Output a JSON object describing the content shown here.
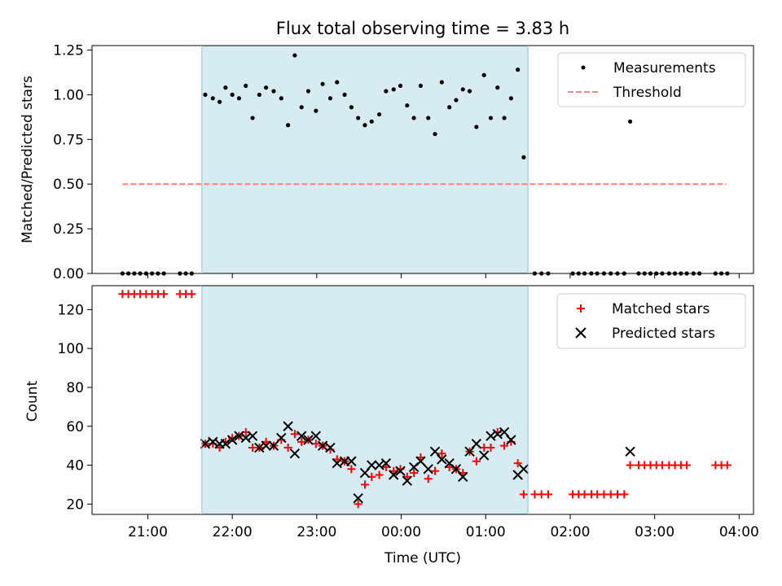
{
  "chart_data": {
    "title": "Flux total observing time = 3.83 h",
    "xlabel": "Time (UTC)",
    "x_tick_labels": [
      "21:00",
      "22:00",
      "23:00",
      "00:00",
      "01:00",
      "02:00",
      "03:00",
      "04:00"
    ],
    "x_tick_hours": [
      21,
      22,
      23,
      24,
      25,
      26,
      27,
      28
    ],
    "x_range_hours": [
      20.34,
      28.17
    ],
    "highlight_span_hours": [
      21.64,
      25.5
    ],
    "highlight_color": "#add8e6",
    "panels": [
      {
        "type": "scatter",
        "ylabel": "Matched/Predicted stars",
        "ylim": [
          0,
          1.275
        ],
        "y_ticks": [
          0.0,
          0.25,
          0.5,
          0.75,
          1.0,
          1.25
        ],
        "y_tick_labels": [
          "0.00",
          "0.25",
          "0.50",
          "0.75",
          "1.00",
          "1.25"
        ],
        "legend": [
          "Measurements",
          "Threshold"
        ],
        "legend_position": "top-right",
        "threshold": {
          "name": "Threshold",
          "value": 0.5,
          "x_start": 20.7,
          "x_end": 27.85,
          "color": "#ff7f7f"
        },
        "measurements": {
          "name": "Measurements",
          "color": "#000000",
          "x": [
            20.7,
            20.77,
            20.84,
            20.91,
            20.98,
            21.05,
            21.12,
            21.19,
            21.38,
            21.45,
            21.52,
            21.68,
            21.77,
            21.85,
            21.92,
            22.0,
            22.08,
            22.16,
            22.24,
            22.32,
            22.4,
            22.49,
            22.58,
            22.66,
            22.74,
            22.82,
            22.9,
            22.99,
            23.07,
            23.16,
            23.24,
            23.33,
            23.41,
            23.49,
            23.57,
            23.65,
            23.74,
            23.82,
            23.91,
            23.99,
            24.07,
            24.15,
            24.23,
            24.32,
            24.4,
            24.48,
            24.57,
            24.65,
            24.73,
            24.81,
            24.89,
            24.98,
            25.06,
            25.14,
            25.22,
            25.3,
            25.38,
            25.45,
            25.58,
            25.66,
            25.74,
            26.03,
            26.1,
            26.17,
            26.25,
            26.32,
            26.4,
            26.48,
            26.56,
            26.64,
            26.71,
            26.81,
            26.88,
            26.95,
            27.02,
            27.09,
            27.17,
            27.24,
            27.31,
            27.38,
            27.46,
            27.53,
            27.72,
            27.79,
            27.86
          ],
          "y": [
            0,
            0,
            0,
            0,
            0,
            0,
            0,
            0,
            0,
            0,
            0,
            1.0,
            0.98,
            0.96,
            1.04,
            1.0,
            0.98,
            1.05,
            0.87,
            1.0,
            1.04,
            1.02,
            0.98,
            0.83,
            1.22,
            0.93,
            1.02,
            0.91,
            1.06,
            0.98,
            1.07,
            1.0,
            0.93,
            0.87,
            0.83,
            0.85,
            0.89,
            1.02,
            1.03,
            1.05,
            0.94,
            0.87,
            1.05,
            0.87,
            0.78,
            1.07,
            0.93,
            0.97,
            1.03,
            1.02,
            0.82,
            1.11,
            0.87,
            1.04,
            0.87,
            0.98,
            1.14,
            0.65,
            0,
            0,
            0,
            0,
            0,
            0,
            0,
            0,
            0,
            0,
            0,
            0,
            0.85,
            0,
            0,
            0,
            0,
            0,
            0,
            0,
            0,
            0,
            0,
            0,
            0,
            0,
            0
          ]
        }
      },
      {
        "type": "scatter",
        "ylabel": "Count",
        "ylim": [
          14.7,
          132.3
        ],
        "y_ticks": [
          20,
          40,
          60,
          80,
          100,
          120
        ],
        "y_tick_labels": [
          "20",
          "40",
          "60",
          "80",
          "100",
          "120"
        ],
        "legend": [
          "Matched stars",
          "Predicted stars"
        ],
        "legend_position": "top-right",
        "series": [
          {
            "name": "Matched stars",
            "marker": "+",
            "color": "#ff0000",
            "x": [
              20.7,
              20.77,
              20.84,
              20.91,
              20.98,
              21.05,
              21.12,
              21.19,
              21.38,
              21.45,
              21.52,
              21.68,
              21.77,
              21.85,
              21.92,
              22.0,
              22.08,
              22.16,
              22.24,
              22.32,
              22.4,
              22.49,
              22.58,
              22.66,
              22.74,
              22.82,
              22.9,
              22.99,
              23.07,
              23.16,
              23.24,
              23.33,
              23.41,
              23.49,
              23.57,
              23.65,
              23.74,
              23.82,
              23.91,
              23.99,
              24.07,
              24.15,
              24.23,
              24.32,
              24.4,
              24.48,
              24.57,
              24.65,
              24.73,
              24.81,
              24.89,
              24.98,
              25.06,
              25.14,
              25.22,
              25.3,
              25.38,
              25.45,
              25.58,
              25.66,
              25.74,
              26.03,
              26.1,
              26.17,
              26.25,
              26.32,
              26.4,
              26.48,
              26.56,
              26.64,
              26.71,
              26.81,
              26.88,
              26.95,
              27.02,
              27.09,
              27.17,
              27.24,
              27.31,
              27.38,
              27.72,
              27.79,
              27.86
            ],
            "y": [
              128,
              128,
              128,
              128,
              128,
              128,
              128,
              128,
              128,
              128,
              128,
              51,
              51,
              49,
              52,
              54,
              55,
              57,
              49,
              49,
              52,
              50,
              53,
              49,
              56,
              52,
              53,
              51,
              50,
              48,
              43,
              42,
              38,
              20,
              30,
              34,
              35,
              39,
              37,
              38,
              34,
              36,
              44,
              33,
              37,
              46,
              39,
              38,
              36,
              47,
              42,
              49,
              49,
              57,
              50,
              52,
              41,
              25,
              25,
              25,
              25,
              25,
              25,
              25,
              25,
              25,
              25,
              25,
              25,
              25,
              40,
              40,
              40,
              40,
              40,
              40,
              40,
              40,
              40,
              40,
              40,
              40,
              40
            ]
          },
          {
            "name": "Predicted stars",
            "marker": "x",
            "color": "#000000",
            "x": [
              21.68,
              21.77,
              21.85,
              21.92,
              22.0,
              22.08,
              22.16,
              22.24,
              22.32,
              22.4,
              22.49,
              22.58,
              22.66,
              22.74,
              22.82,
              22.9,
              22.99,
              23.07,
              23.16,
              23.24,
              23.33,
              23.41,
              23.49,
              23.57,
              23.65,
              23.74,
              23.82,
              23.91,
              23.99,
              24.07,
              24.15,
              24.23,
              24.32,
              24.4,
              24.48,
              24.57,
              24.65,
              24.73,
              24.81,
              24.89,
              24.98,
              25.06,
              25.14,
              25.22,
              25.3,
              25.38,
              25.45,
              26.71
            ],
            "y": [
              51,
              52,
              51,
              51,
              53,
              55,
              54,
              55,
              49,
              50,
              50,
              54,
              60,
              46,
              55,
              53,
              55,
              50,
              49,
              41,
              42,
              42,
              23,
              36,
              40,
              40,
              41,
              35,
              37,
              32,
              39,
              42,
              38,
              47,
              43,
              41,
              38,
              34,
              47,
              51,
              45,
              55,
              56,
              57,
              53,
              35,
              38,
              47
            ]
          }
        ]
      }
    ]
  }
}
